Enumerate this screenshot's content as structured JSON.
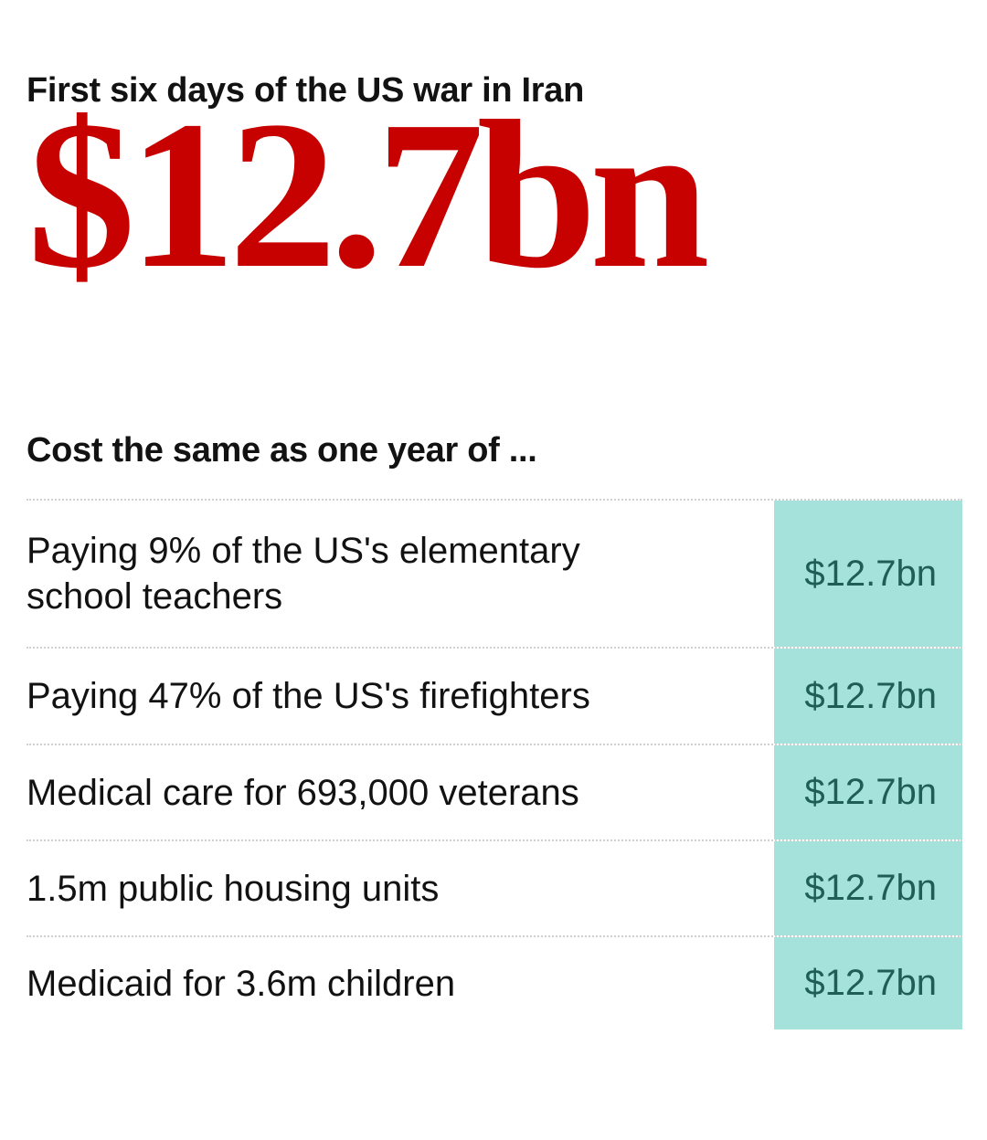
{
  "headline": "First six days of the US war in Iran",
  "total": "$12.7bn",
  "subheading": "Cost the same as one year of ...",
  "colors": {
    "accent_red": "#c70000",
    "value_cell_bg": "#a6e2dc",
    "value_text": "#1e5e56"
  },
  "rows": [
    {
      "label": "Paying 9% of the US's elementary school teachers",
      "value": "$12.7bn"
    },
    {
      "label": "Paying 47% of the US's firefighters",
      "value": "$12.7bn"
    },
    {
      "label": "Medical care for 693,000 veterans",
      "value": "$12.7bn"
    },
    {
      "label": "1.5m public housing units",
      "value": "$12.7bn"
    },
    {
      "label": "Medicaid for 3.6m children",
      "value": "$12.7bn"
    }
  ]
}
